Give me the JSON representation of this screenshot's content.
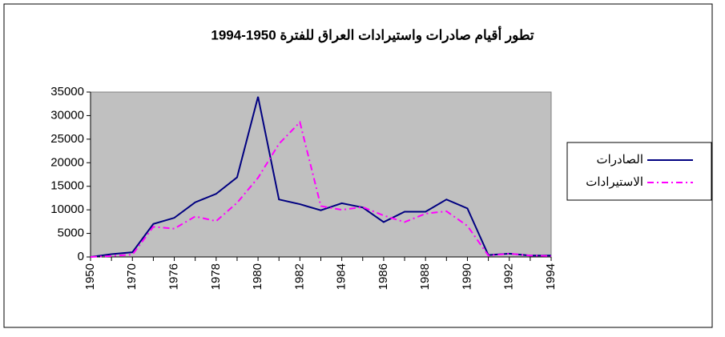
{
  "chart_data": {
    "type": "line",
    "title": "تطور أقيام صادرات واستيرادات العراق للفترة 1950-1994",
    "categories": [
      "1950",
      null,
      "1970",
      null,
      "1976",
      null,
      "1978",
      null,
      "1980",
      null,
      "1982",
      null,
      "1984",
      null,
      "1986",
      null,
      "1988",
      null,
      "1990",
      null,
      "1992",
      null,
      "1994"
    ],
    "series": [
      {
        "name": "الصادرات",
        "color": "#000080",
        "dash": "solid",
        "values": [
          0,
          600,
          1000,
          7000,
          8300,
          11600,
          13400,
          16900,
          34000,
          12200,
          11200,
          9900,
          11400,
          10500,
          7400,
          9600,
          9600,
          12200,
          10300,
          400,
          700,
          300,
          300
        ]
      },
      {
        "name": "الاستيرادات",
        "color": "#ff00ff",
        "dash": "dashdot",
        "values": [
          0,
          200,
          500,
          6400,
          6000,
          8600,
          7600,
          11500,
          16800,
          24000,
          28600,
          10800,
          10000,
          10600,
          8800,
          7400,
          9200,
          9700,
          6600,
          300,
          700,
          300,
          200
        ]
      }
    ],
    "ylim": [
      0,
      35000
    ],
    "yticks": [
      0,
      5000,
      10000,
      15000,
      20000,
      25000,
      30000,
      35000
    ],
    "grid": false,
    "legend": "right"
  }
}
